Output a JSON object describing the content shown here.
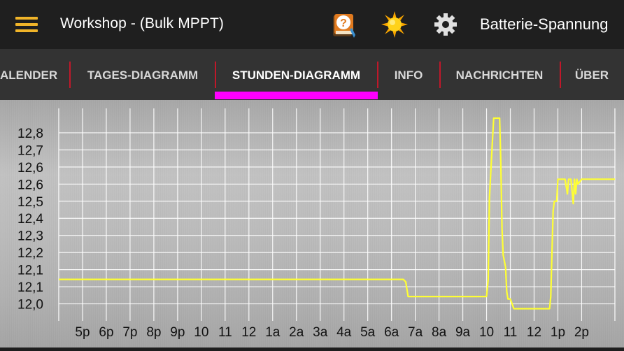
{
  "header": {
    "title": "Workshop - (Bulk MPPT)",
    "status": "Batterie-Spannung",
    "icons": [
      "menu-icon",
      "help-book-icon",
      "sun-icon",
      "gear-icon"
    ],
    "accent_color": "#f0b429"
  },
  "tabs": [
    {
      "label": "ALENDER"
    },
    {
      "label": "TAGES-DIAGRAMM"
    },
    {
      "label": "STUNDEN-DIAGRAMM",
      "active": true
    },
    {
      "label": "INFO"
    },
    {
      "label": "NACHRICHTEN"
    },
    {
      "label": "ÜBER"
    }
  ],
  "tab_indicator_color": "#ff00ff",
  "tab_separator_color": "#c0182a",
  "chart_data": {
    "type": "line",
    "line_color": "#ffff33",
    "grid": true,
    "ylim": [
      11.95,
      12.82
    ],
    "y_ticks": [
      {
        "value": 12.02,
        "label": "12,0"
      },
      {
        "value": 12.09,
        "label": "12,1"
      },
      {
        "value": 12.16,
        "label": "12,1"
      },
      {
        "value": 12.23,
        "label": "12,2"
      },
      {
        "value": 12.3,
        "label": "12,3"
      },
      {
        "value": 12.37,
        "label": "12,4"
      },
      {
        "value": 12.44,
        "label": "12,5"
      },
      {
        "value": 12.51,
        "label": "12,6"
      },
      {
        "value": 12.58,
        "label": "12,6"
      },
      {
        "value": 12.65,
        "label": "12,7"
      },
      {
        "value": 12.72,
        "label": "12,8"
      }
    ],
    "xlim": [
      0,
      23.4
    ],
    "x_ticks": [
      {
        "value": 1,
        "label": "5p"
      },
      {
        "value": 2,
        "label": "6p"
      },
      {
        "value": 3,
        "label": "7p"
      },
      {
        "value": 4,
        "label": "8p"
      },
      {
        "value": 5,
        "label": "9p"
      },
      {
        "value": 6,
        "label": "10"
      },
      {
        "value": 7,
        "label": "11"
      },
      {
        "value": 8,
        "label": "12"
      },
      {
        "value": 9,
        "label": "1a"
      },
      {
        "value": 10,
        "label": "2a"
      },
      {
        "value": 11,
        "label": "3a"
      },
      {
        "value": 12,
        "label": "4a"
      },
      {
        "value": 13,
        "label": "5a"
      },
      {
        "value": 14,
        "label": "6a"
      },
      {
        "value": 15,
        "label": "7a"
      },
      {
        "value": 16,
        "label": "8a"
      },
      {
        "value": 17,
        "label": "9a"
      },
      {
        "value": 18,
        "label": "10"
      },
      {
        "value": 19,
        "label": "11"
      },
      {
        "value": 20,
        "label": "12"
      },
      {
        "value": 21,
        "label": "1p"
      },
      {
        "value": 22,
        "label": "2p"
      }
    ],
    "series": [
      {
        "x": [
          0,
          14.5,
          14.6,
          14.7,
          18.0,
          18.07,
          18.12,
          18.2,
          18.3,
          18.4,
          18.55,
          18.6,
          18.65,
          18.7,
          18.8,
          18.85,
          18.9,
          19.0,
          19.15,
          19.2,
          20.65,
          20.7,
          20.8,
          20.85,
          20.95,
          21.0,
          21.15,
          21.3,
          21.4,
          21.45,
          21.55,
          21.65,
          21.7,
          21.75,
          21.8,
          21.85,
          22.0,
          23.4
        ],
        "y": [
          12.12,
          12.12,
          12.11,
          12.05,
          12.05,
          12.12,
          12.45,
          12.6,
          12.78,
          12.78,
          12.78,
          12.6,
          12.33,
          12.22,
          12.17,
          12.07,
          12.04,
          12.04,
          12.0,
          12.0,
          12.0,
          12.05,
          12.4,
          12.44,
          12.44,
          12.53,
          12.53,
          12.53,
          12.47,
          12.53,
          12.53,
          12.43,
          12.53,
          12.47,
          12.53,
          12.51,
          12.53,
          12.53
        ]
      }
    ]
  }
}
